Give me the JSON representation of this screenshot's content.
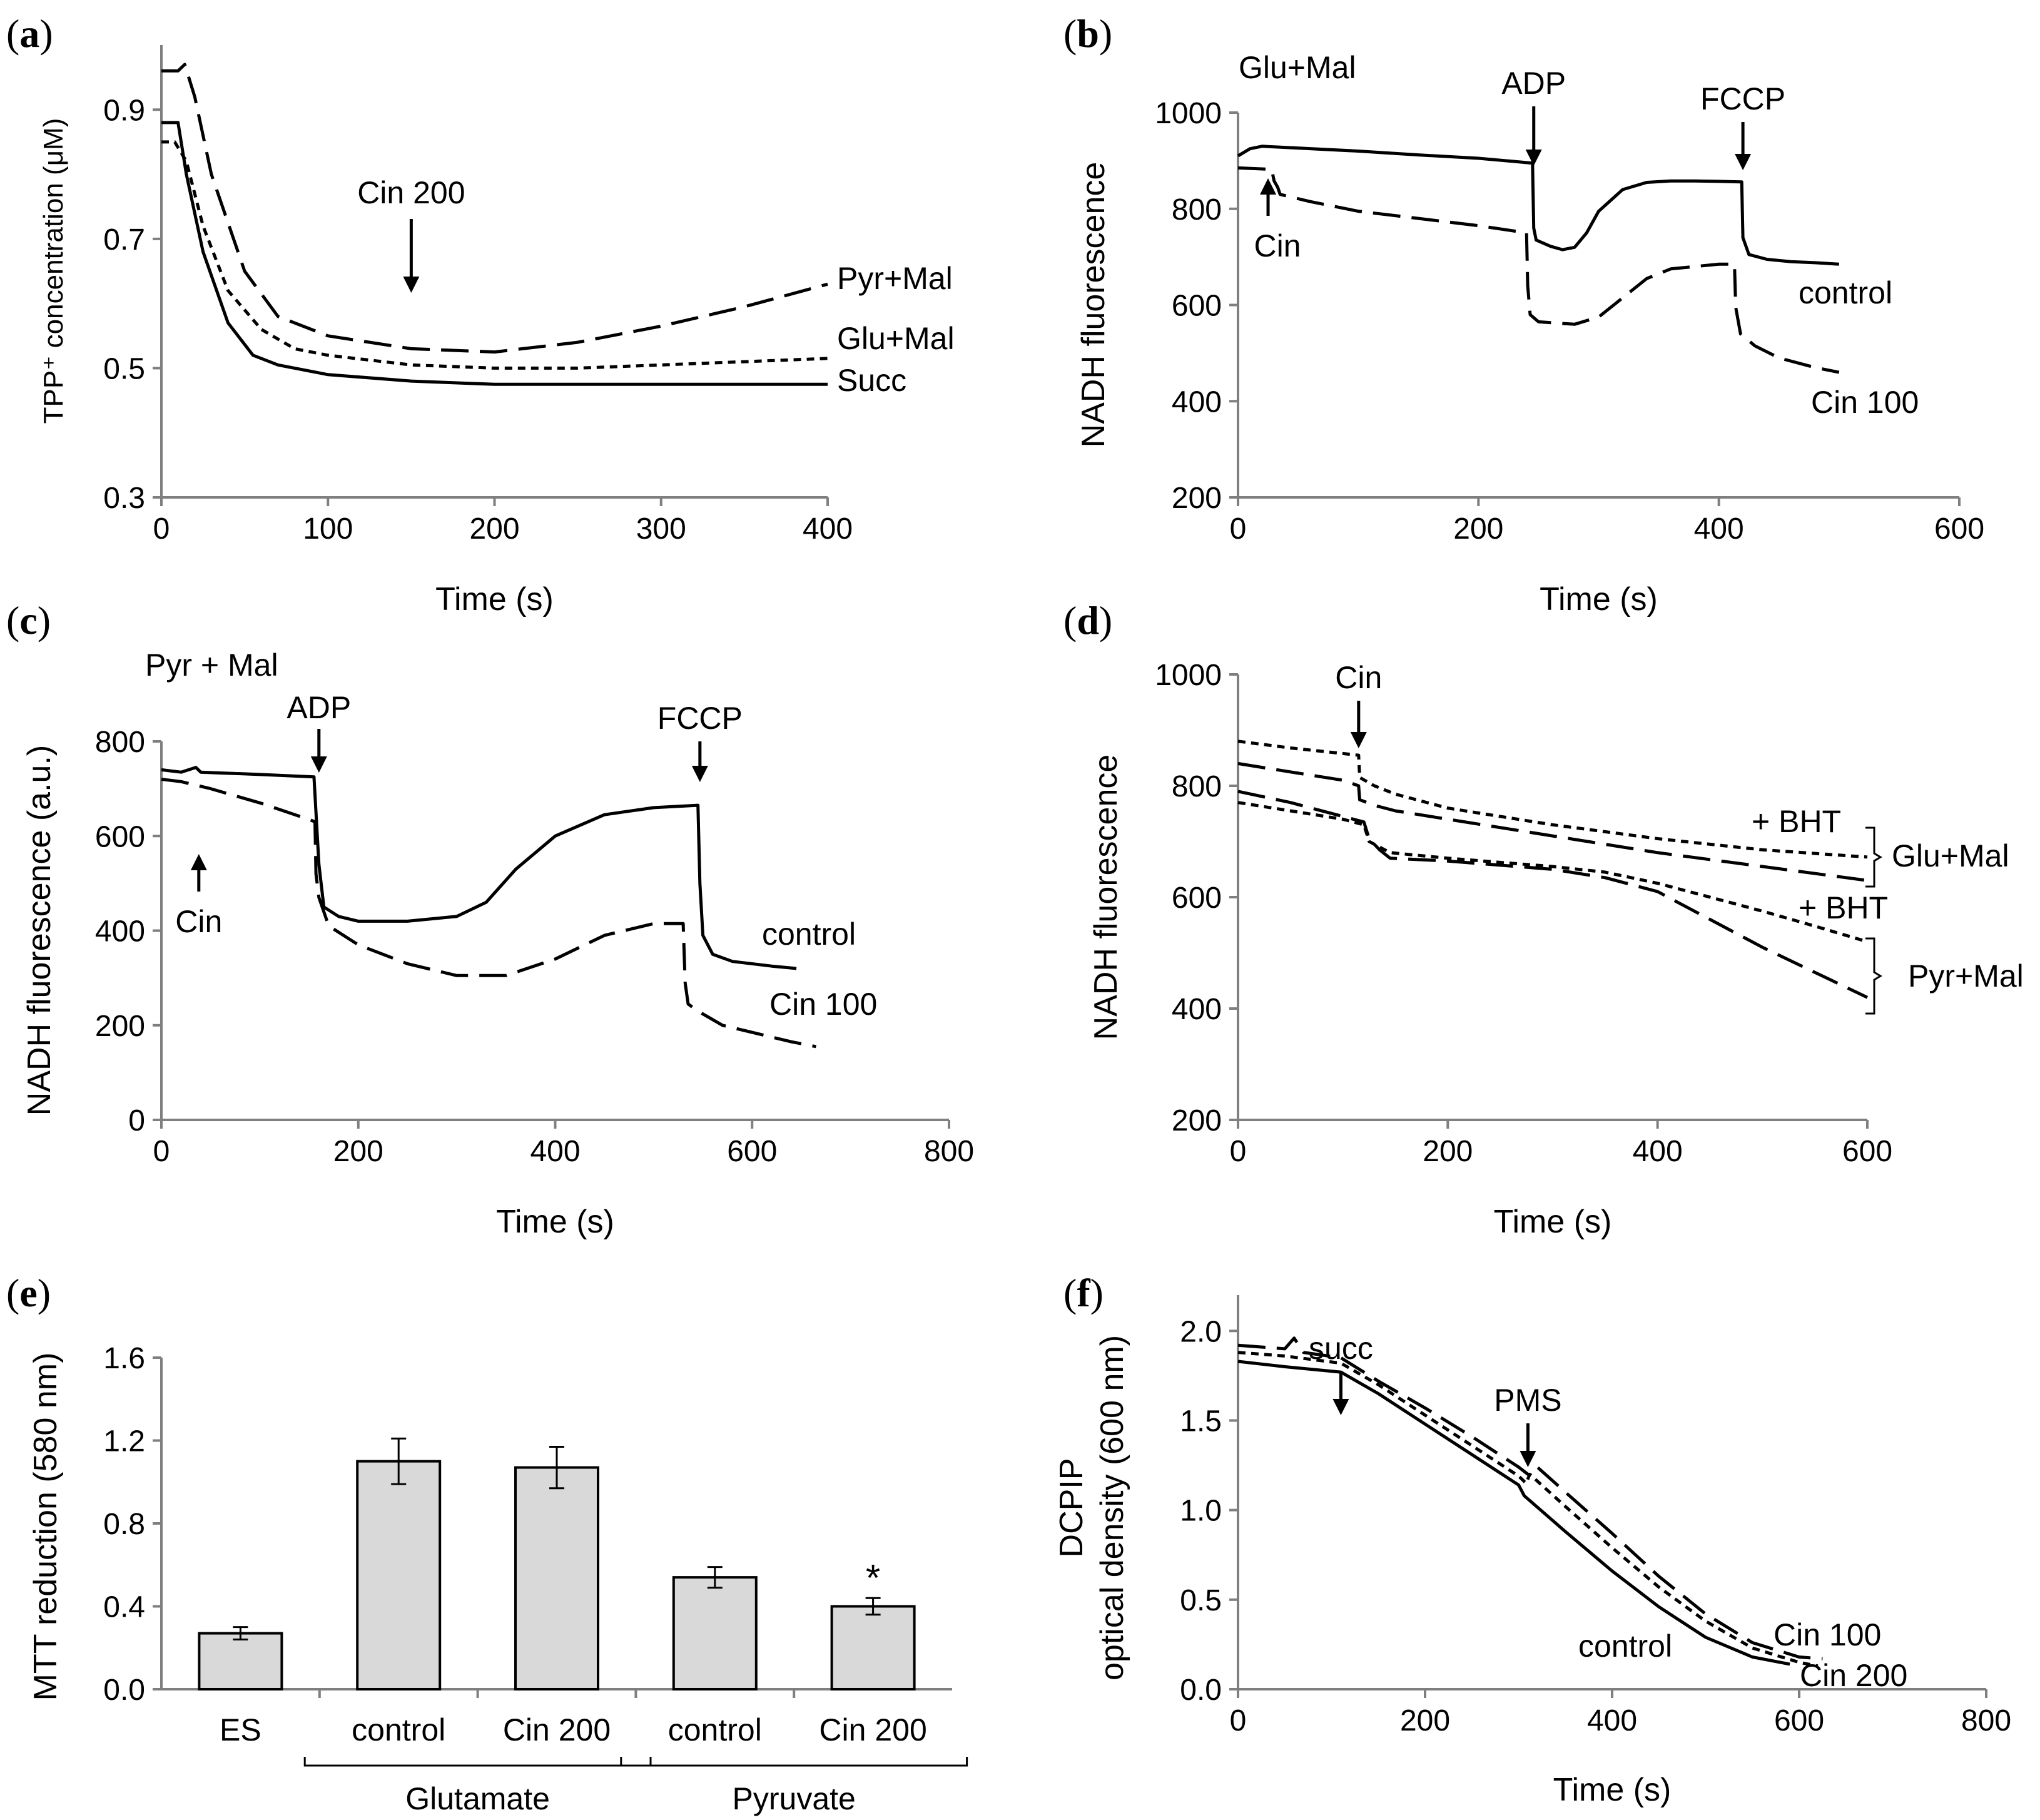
{
  "chart_data": [
    {
      "panel": "a",
      "type": "line",
      "xlabel": "Time (s)",
      "ylabel": "TPP⁺ concentration (μM)",
      "xlim": [
        0,
        400
      ],
      "ylim": [
        0.3,
        1.0
      ],
      "xticks": [
        "0",
        "100",
        "200",
        "300",
        "400"
      ],
      "yticks": [
        "0.3",
        "0.5",
        "0.7",
        "0.9"
      ],
      "series": [
        {
          "name": "Pyr+Mal",
          "style": "dash",
          "x": [
            0,
            10,
            14,
            20,
            30,
            50,
            70,
            100,
            150,
            200,
            250,
            300,
            350,
            400
          ],
          "y": [
            0.96,
            0.96,
            0.97,
            0.92,
            0.8,
            0.65,
            0.58,
            0.55,
            0.53,
            0.525,
            0.54,
            0.565,
            0.595,
            0.63
          ]
        },
        {
          "name": "Glu+Mal",
          "style": "dot",
          "x": [
            0,
            8,
            15,
            25,
            40,
            60,
            80,
            100,
            150,
            200,
            250,
            300,
            350,
            400
          ],
          "y": [
            0.85,
            0.85,
            0.82,
            0.72,
            0.62,
            0.56,
            0.53,
            0.52,
            0.505,
            0.5,
            0.5,
            0.505,
            0.51,
            0.515
          ]
        },
        {
          "name": "Succ",
          "style": "solid",
          "x": [
            0,
            10,
            15,
            25,
            40,
            55,
            70,
            100,
            150,
            200,
            250,
            300,
            350,
            400
          ],
          "y": [
            0.88,
            0.88,
            0.8,
            0.68,
            0.57,
            0.52,
            0.505,
            0.49,
            0.48,
            0.475,
            0.475,
            0.475,
            0.475,
            0.475
          ]
        }
      ],
      "annotations": [
        {
          "text": "Cin 200",
          "x": 150
        }
      ]
    },
    {
      "panel": "b",
      "type": "line",
      "xlabel": "Time (s)",
      "ylabel": "NADH fluorescence",
      "xlim": [
        0,
        600
      ],
      "ylim": [
        200,
        1000
      ],
      "xticks": [
        "0",
        "200",
        "400",
        "600"
      ],
      "yticks": [
        "200",
        "400",
        "600",
        "800",
        "1000"
      ],
      "label_top": "Glu+Mal",
      "series": [
        {
          "name": "control",
          "style": "solid",
          "x": [
            0,
            10,
            20,
            100,
            150,
            200,
            245,
            246,
            248,
            260,
            270,
            280,
            290,
            300,
            320,
            340,
            360,
            380,
            400,
            419,
            420,
            425,
            440,
            460,
            480,
            500
          ],
          "y": [
            910,
            925,
            930,
            920,
            912,
            905,
            895,
            760,
            735,
            722,
            715,
            720,
            750,
            795,
            840,
            855,
            858,
            858,
            857,
            856,
            740,
            705,
            695,
            690,
            688,
            685
          ]
        },
        {
          "name": "Cin 100",
          "style": "dash",
          "x": [
            0,
            28,
            30,
            33,
            35,
            60,
            100,
            150,
            200,
            240,
            241,
            243,
            250,
            280,
            300,
            320,
            340,
            360,
            400,
            413,
            414,
            418,
            430,
            450,
            480,
            500
          ],
          "y": [
            885,
            882,
            858,
            845,
            830,
            815,
            795,
            780,
            765,
            750,
            640,
            580,
            565,
            560,
            575,
            615,
            655,
            675,
            685,
            685,
            595,
            540,
            515,
            490,
            470,
            460
          ]
        }
      ],
      "annotations": [
        {
          "text": "Cin",
          "x": 25
        },
        {
          "text": "ADP",
          "x": 246
        },
        {
          "text": "FCCP",
          "x": 420
        }
      ]
    },
    {
      "panel": "c",
      "type": "line",
      "xlabel": "Time (s)",
      "ylabel": "NADH fluorescence (a.u.)",
      "xlim": [
        0,
        800
      ],
      "ylim": [
        0,
        800
      ],
      "xticks": [
        "0",
        "200",
        "400",
        "600",
        "800"
      ],
      "yticks": [
        "0",
        "200",
        "400",
        "600",
        "800"
      ],
      "label_top": "Pyr + Mal",
      "series": [
        {
          "name": "control",
          "style": "solid",
          "x": [
            0,
            20,
            35,
            40,
            100,
            155,
            160,
            165,
            180,
            200,
            250,
            300,
            330,
            360,
            400,
            450,
            500,
            545,
            547,
            550,
            560,
            580,
            620,
            645
          ],
          "y": [
            740,
            735,
            745,
            735,
            730,
            725,
            540,
            450,
            430,
            420,
            420,
            430,
            460,
            530,
            600,
            645,
            660,
            665,
            500,
            390,
            350,
            335,
            325,
            320
          ]
        },
        {
          "name": "Cin 100",
          "style": "dash",
          "x": [
            0,
            20,
            50,
            100,
            150,
            156,
            157,
            160,
            170,
            200,
            250,
            300,
            350,
            400,
            450,
            500,
            530,
            532,
            535,
            545,
            570,
            600,
            640,
            665
          ],
          "y": [
            720,
            715,
            700,
            670,
            635,
            630,
            520,
            470,
            410,
            370,
            330,
            305,
            305,
            340,
            390,
            415,
            415,
            290,
            245,
            230,
            200,
            185,
            165,
            155
          ]
        }
      ],
      "annotations": [
        {
          "text": "Cin",
          "x": 38
        },
        {
          "text": "ADP",
          "x": 160
        },
        {
          "text": "FCCP",
          "x": 547
        }
      ]
    },
    {
      "panel": "d",
      "type": "line",
      "xlabel": "Time (s)",
      "ylabel": "NADH fluorescence",
      "xlim": [
        0,
        600
      ],
      "ylim": [
        200,
        1000
      ],
      "xticks": [
        "0",
        "200",
        "400",
        "600"
      ],
      "yticks": [
        "200",
        "400",
        "600",
        "800",
        "1000"
      ],
      "series": [
        {
          "name": "Glu+Mal + BHT",
          "style": "dot",
          "x": [
            0,
            50,
            100,
            115,
            116,
            130,
            150,
            200,
            300,
            400,
            500,
            600
          ],
          "y": [
            880,
            868,
            858,
            855,
            815,
            800,
            785,
            760,
            730,
            705,
            685,
            672
          ]
        },
        {
          "name": "Glu+Mal",
          "style": "dash",
          "x": [
            0,
            50,
            100,
            115,
            116,
            130,
            150,
            200,
            300,
            400,
            500,
            600
          ],
          "y": [
            840,
            825,
            810,
            800,
            775,
            765,
            755,
            740,
            710,
            680,
            655,
            630
          ]
        },
        {
          "name": "Pyr+Mal + BHT",
          "style": "dot",
          "x": [
            0,
            50,
            100,
            120,
            125,
            135,
            145,
            200,
            300,
            350,
            400,
            450,
            500,
            550,
            600
          ],
          "y": [
            770,
            755,
            740,
            730,
            700,
            690,
            680,
            670,
            655,
            645,
            625,
            600,
            575,
            548,
            520
          ]
        },
        {
          "name": "Pyr+Mal",
          "style": "dash",
          "x": [
            0,
            50,
            100,
            120,
            125,
            135,
            145,
            200,
            300,
            350,
            400,
            450,
            500,
            550,
            600
          ],
          "y": [
            790,
            770,
            745,
            735,
            705,
            685,
            670,
            665,
            650,
            635,
            610,
            560,
            510,
            465,
            420
          ]
        }
      ],
      "annotations": [
        {
          "text": "Cin",
          "x": 115
        },
        {
          "text": "+ BHT"
        },
        {
          "text": "Glu+Mal"
        },
        {
          "text": "+ BHT"
        },
        {
          "text": "Pyr+Mal"
        }
      ]
    },
    {
      "panel": "e",
      "type": "bar",
      "ylabel": "MTT reduction (580 nm)",
      "ylim": [
        0,
        1.6
      ],
      "yticks": [
        "0.0",
        "0.4",
        "0.8",
        "1.2",
        "1.6"
      ],
      "categories": [
        "ES",
        "control",
        "Cin 200",
        "control",
        "Cin 200"
      ],
      "groups": [
        {
          "name": "Glutamate",
          "members": [
            1,
            2
          ]
        },
        {
          "name": "Pyruvate",
          "members": [
            3,
            4
          ]
        }
      ],
      "values": [
        0.27,
        1.1,
        1.07,
        0.54,
        0.4
      ],
      "errors": [
        0.03,
        0.11,
        0.1,
        0.05,
        0.04
      ],
      "significance": [
        "",
        "",
        "",
        "",
        "*"
      ]
    },
    {
      "panel": "f",
      "type": "line",
      "xlabel": "Time (s)",
      "ylabel": "DCPIP optical density (600 nm)",
      "ylabel_lines": [
        "DCPIP",
        "optical density (600 nm)"
      ],
      "xlim": [
        0,
        800
      ],
      "ylim": [
        0,
        2.2
      ],
      "xticks": [
        "0",
        "200",
        "400",
        "600",
        "800"
      ],
      "yticks": [
        "0.0",
        "0.5",
        "1.0",
        "1.5",
        "2.0"
      ],
      "series": [
        {
          "name": "control",
          "style": "solid",
          "x": [
            0,
            50,
            110,
            150,
            200,
            250,
            300,
            306,
            350,
            400,
            450,
            500,
            550,
            590
          ],
          "y": [
            1.83,
            1.8,
            1.77,
            1.65,
            1.48,
            1.31,
            1.14,
            1.08,
            0.88,
            0.66,
            0.46,
            0.29,
            0.18,
            0.14
          ]
        },
        {
          "name": "Cin 100",
          "style": "dash",
          "x": [
            0,
            50,
            60,
            70,
            110,
            150,
            200,
            250,
            300,
            310,
            320,
            350,
            400,
            450,
            500,
            550,
            600,
            625
          ],
          "y": [
            1.92,
            1.9,
            1.96,
            1.88,
            1.85,
            1.72,
            1.57,
            1.41,
            1.24,
            1.2,
            1.24,
            1.1,
            0.87,
            0.63,
            0.42,
            0.26,
            0.18,
            0.17
          ]
        },
        {
          "name": "Cin 200",
          "style": "dot",
          "x": [
            0,
            50,
            110,
            150,
            200,
            250,
            300,
            308,
            312,
            350,
            400,
            450,
            500,
            550,
            600,
            620
          ],
          "y": [
            1.88,
            1.86,
            1.82,
            1.7,
            1.53,
            1.36,
            1.19,
            1.15,
            1.2,
            1.02,
            0.79,
            0.57,
            0.38,
            0.23,
            0.15,
            0.13
          ]
        }
      ],
      "annotations": [
        {
          "text": "succ",
          "x": 110
        },
        {
          "text": "PMS",
          "x": 310
        }
      ]
    }
  ]
}
